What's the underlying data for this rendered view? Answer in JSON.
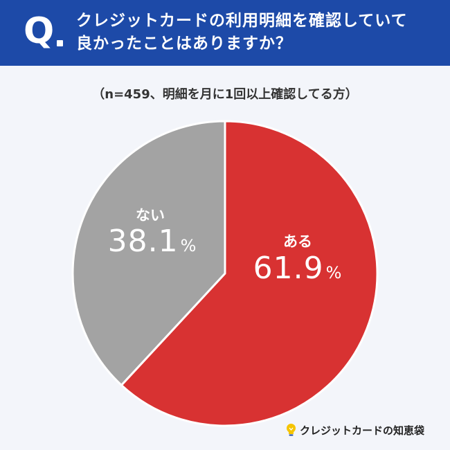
{
  "header": {
    "q_mark": "Q",
    "question_lines": [
      "クレジットカードの利用明細を確認していて",
      "良かったことはありますか？"
    ],
    "background": "#1d4aa8"
  },
  "subtitle": "（n=459、明細を月に1回以上確認してる方）",
  "chart_data": {
    "type": "pie",
    "title": "クレジットカードの利用明細を確認していて良かったことはありますか？",
    "subtitle": "（n=459、明細を月に1回以上確認してる方）",
    "slices": [
      {
        "label": "ある",
        "value": 61.9,
        "display": "61.9",
        "unit": "%",
        "color": "#d83232"
      },
      {
        "label": "ない",
        "value": 38.1,
        "display": "38.1",
        "unit": "%",
        "color": "#a3a3a3"
      }
    ]
  },
  "brand": {
    "name": "クレジットカードの知恵袋"
  }
}
